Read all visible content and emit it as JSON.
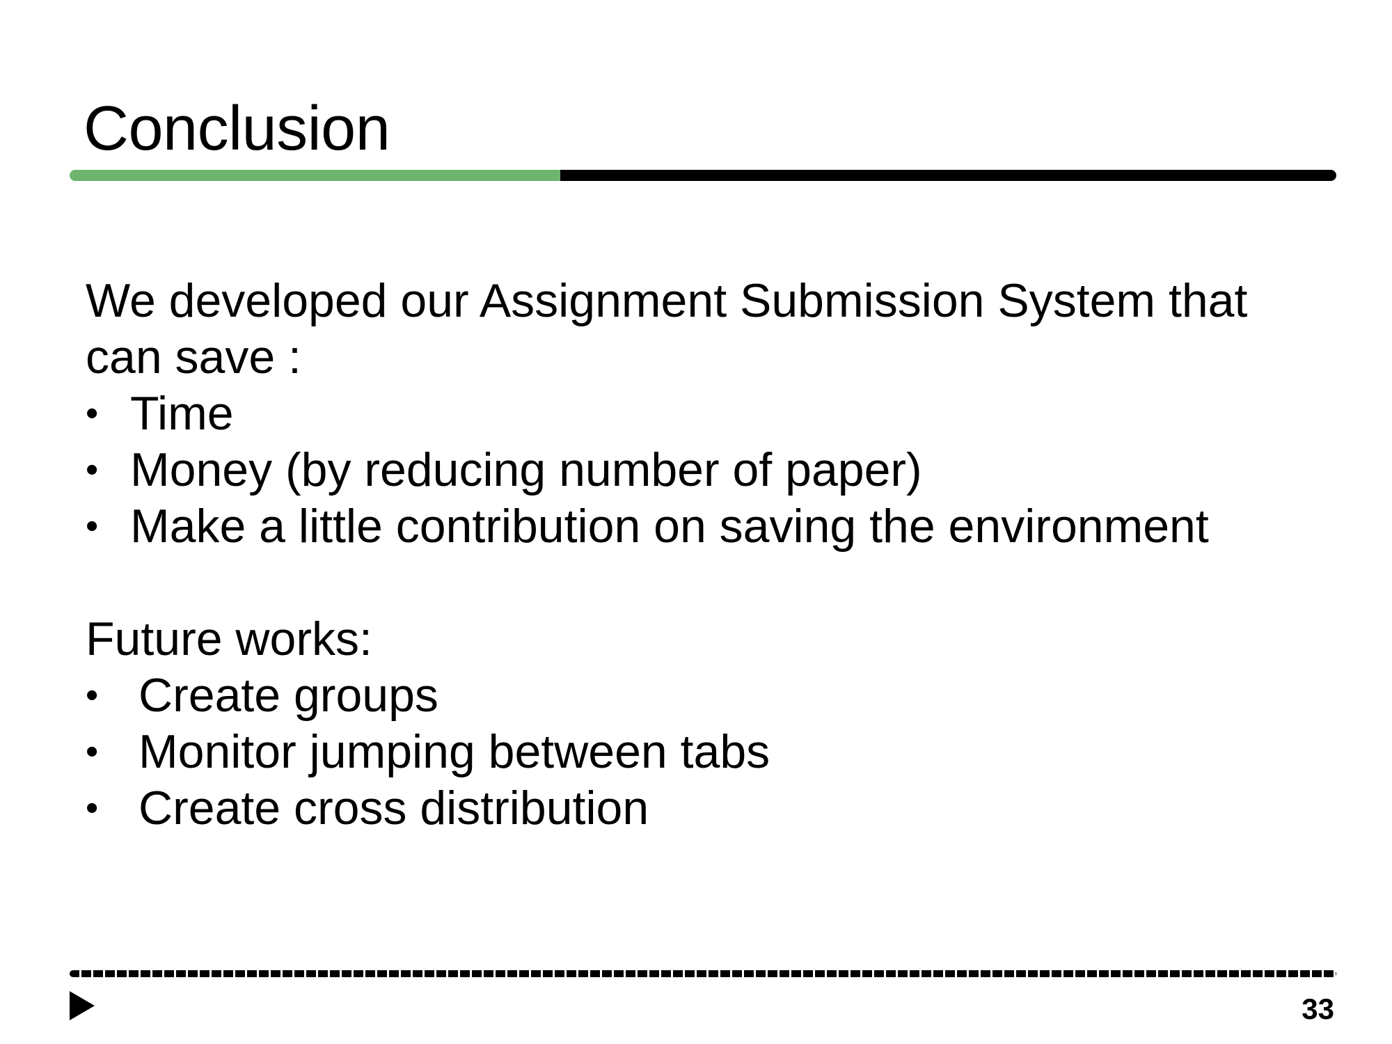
{
  "slide": {
    "title": "Conclusion",
    "intro_text": "We developed our Assignment Submission System that can save :",
    "benefits": [
      "Time",
      "Money (by reducing number of paper)",
      "Make a little contribution on saving the environment"
    ],
    "future_label": "Future works:",
    "future_items": [
      "Create groups",
      "Monitor jumping between tabs",
      "Create cross distribution"
    ],
    "page_number": "33"
  },
  "icons": {
    "bullet": "bullet-dot-icon",
    "nav": "play-triangle-icon"
  },
  "colors": {
    "accent": "#6db56d",
    "rule": "#000000",
    "text": "#000000",
    "background": "#ffffff"
  }
}
